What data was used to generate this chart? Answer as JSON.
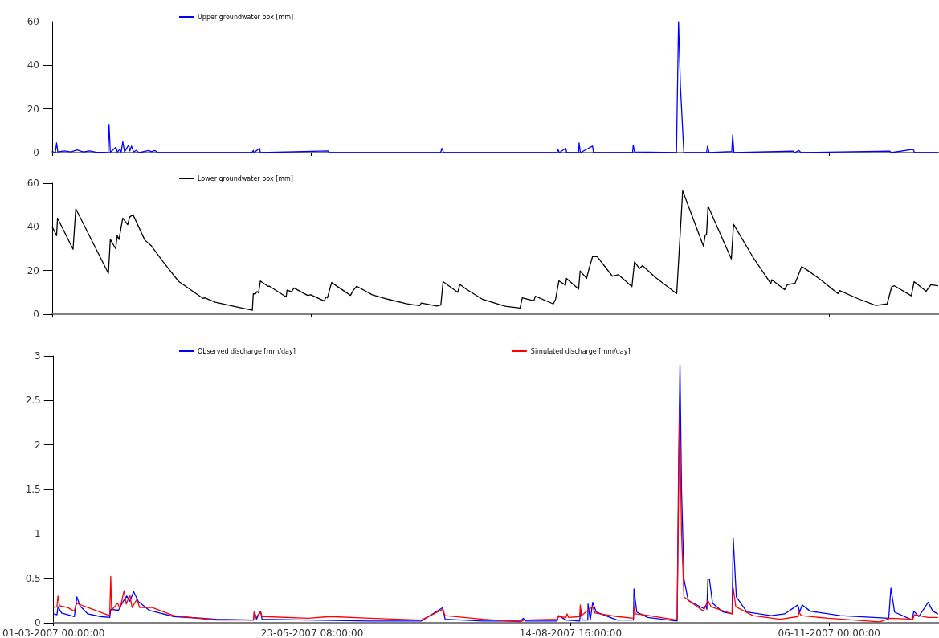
{
  "chart_data": [
    {
      "type": "line",
      "xlim": [
        "2007-03-01T00:00",
        "2007-12-11T10:00"
      ],
      "xticks": [
        {
          "value": "2007-03-01T00:00",
          "label": null
        },
        {
          "value": "2007-05-23T08:00",
          "label": null
        },
        {
          "value": "2007-08-14T16:00",
          "label": null
        },
        {
          "value": "2007-11-06T00:00",
          "label": null
        }
      ],
      "ylim": [
        0,
        60
      ],
      "yticks": [
        0,
        20,
        40,
        60
      ],
      "tick_labels": "y",
      "legend": "top",
      "marker": "none",
      "line_style": "solid",
      "series": [
        {
          "name": "Upper groundwater box [mm]",
          "color": "#0000ff",
          "x": [
            "2007-03-01T00:00",
            "2007-03-02T00:00",
            "2007-03-02T10:00",
            "2007-03-02T19:00",
            "2007-03-05T00:00",
            "2007-03-07T00:00",
            "2007-03-09T00:00",
            "2007-03-11T00:00",
            "2007-03-13T00:00",
            "2007-03-15T00:00",
            "2007-03-19T00:00",
            "2007-03-19T07:00",
            "2007-03-19T17:00",
            "2007-03-21T12:00",
            "2007-03-22T00:00",
            "2007-03-22T17:00",
            "2007-03-23T05:00",
            "2007-03-23T17:00",
            "2007-03-24T07:00",
            "2007-03-25T14:00",
            "2007-03-26T00:00",
            "2007-03-26T12:00",
            "2007-03-27T05:00",
            "2007-03-28T00:00",
            "2007-03-29T00:00",
            "2007-04-01T00:00",
            "2007-04-02T00:00",
            "2007-04-03T00:00",
            "2007-04-04T00:00",
            "2007-05-04T07:00",
            "2007-05-04T17:00",
            "2007-05-05T00:00",
            "2007-05-06T17:00",
            "2007-05-07T00:00",
            "2007-05-28T19:00",
            "2007-05-29T05:00",
            "2007-07-04T00:00",
            "2007-07-04T10:00",
            "2007-07-05T00:00",
            "2007-08-10T12:00",
            "2007-08-10T19:00",
            "2007-08-11T05:00",
            "2007-08-13T07:00",
            "2007-08-13T14:00",
            "2007-08-17T10:00",
            "2007-08-17T14:00",
            "2007-08-18T00:00",
            "2007-08-21T22:00",
            "2007-08-22T05:00",
            "2007-09-03T19:00",
            "2007-09-04T00:00",
            "2007-09-04T10:00",
            "2007-09-17T22:00",
            "2007-09-18T14:00",
            "2007-09-19T05:00",
            "2007-09-20T07:00",
            "2007-09-27T14:00",
            "2007-09-27T22:00",
            "2007-09-28T10:00",
            "2007-10-05T17:00",
            "2007-10-06T00:00",
            "2007-10-06T10:00",
            "2007-10-25T10:00",
            "2007-10-26T00:00",
            "2007-10-27T07:00",
            "2007-10-28T00:00",
            "2007-11-25T14:00",
            "2007-11-26T00:00",
            "2007-12-03T02:00",
            "2007-12-03T14:00",
            "2007-12-11T00:00"
          ],
          "values": [
            0.5,
            0,
            4.5,
            0.3,
            0.8,
            0.3,
            1.2,
            0.3,
            0.8,
            0.2,
            0,
            13,
            0.2,
            2.5,
            0.2,
            1.5,
            0.3,
            5,
            0.3,
            3.5,
            0.8,
            3,
            0.3,
            1,
            0,
            1,
            0.4,
            1,
            0,
            0,
            1,
            0,
            2,
            0,
            0.8,
            0,
            0,
            2,
            0,
            0,
            1.5,
            0,
            2,
            0,
            0,
            4.5,
            0,
            3,
            0,
            0,
            3.5,
            0.3,
            0,
            60,
            30,
            0,
            0,
            3,
            0,
            0.5,
            8,
            0,
            0.7,
            0,
            1,
            0,
            0.7,
            0,
            1.5,
            0,
            0
          ]
        }
      ]
    },
    {
      "type": "line",
      "xlim": [
        "2007-03-01T00:00",
        "2007-12-11T10:00"
      ],
      "xticks": [
        {
          "value": "2007-03-01T00:00",
          "label": null
        },
        {
          "value": "2007-05-23T08:00",
          "label": null
        },
        {
          "value": "2007-08-14T16:00",
          "label": null
        },
        {
          "value": "2007-11-06T00:00",
          "label": null
        }
      ],
      "ylim": [
        0,
        60
      ],
      "yticks": [
        0,
        20,
        40,
        60
      ],
      "tick_labels": "y",
      "legend": "top",
      "marker": "none",
      "line_style": "solid",
      "series": [
        {
          "name": "Lower groundwater box [mm]",
          "color": "#000000",
          "x": [
            "2007-03-01T00:00",
            "2007-03-02T10:00",
            "2007-03-02T17:00",
            "2007-03-07T17:00",
            "2007-03-08T14:00",
            "2007-03-19T02:00",
            "2007-03-19T17:00",
            "2007-03-21T10:00",
            "2007-03-21T22:00",
            "2007-03-22T12:00",
            "2007-03-22T22:00",
            "2007-03-23T17:00",
            "2007-03-25T07:00",
            "2007-03-25T22:00",
            "2007-03-27T00:00",
            "2007-03-30T19:00",
            "2007-04-01T19:00",
            "2007-04-05T17:00",
            "2007-04-10T17:00",
            "2007-04-18T14:00",
            "2007-04-19T02:00",
            "2007-04-22T12:00",
            "2007-04-30T10:00",
            "2007-05-04T10:00",
            "2007-05-04T17:00",
            "2007-05-05T10:00",
            "2007-05-05T22:00",
            "2007-05-06T10:00",
            "2007-05-07T00:00",
            "2007-05-09T10:00",
            "2007-05-09T22:00",
            "2007-05-15T07:00",
            "2007-05-15T14:00",
            "2007-05-17T02:00",
            "2007-05-17T19:00",
            "2007-05-22T05:00",
            "2007-05-23T05:00",
            "2007-05-27T14:00",
            "2007-05-28T02:00",
            "2007-05-28T14:00",
            "2007-05-29T22:00",
            "2007-06-05T00:00",
            "2007-06-05T19:00",
            "2007-06-07T00:00",
            "2007-06-12T00:00",
            "2007-06-16T22:00",
            "2007-06-22T22:00",
            "2007-06-27T07:00",
            "2007-06-27T19:00",
            "2007-07-02T19:00",
            "2007-07-04T02:00",
            "2007-07-04T19:00",
            "2007-07-09T12:00",
            "2007-07-10T05:00",
            "2007-07-12T05:00",
            "2007-07-17T10:00",
            "2007-07-24T19:00",
            "2007-07-29T14:00",
            "2007-07-30T07:00",
            "2007-08-03T00:00",
            "2007-08-03T12:00",
            "2007-08-09T07:00",
            "2007-08-10T00:00",
            "2007-08-11T02:00",
            "2007-08-13T05:00",
            "2007-08-13T12:00",
            "2007-08-17T10:00",
            "2007-08-17T22:00",
            "2007-08-20T00:00",
            "2007-08-20T19:00",
            "2007-08-21T22:00",
            "2007-08-23T10:00",
            "2007-08-28T07:00",
            "2007-08-30T05:00",
            "2007-09-03T14:00",
            "2007-09-04T10:00",
            "2007-09-06T00:00",
            "2007-09-07T00:00",
            "2007-09-10T22:00",
            "2007-09-18T00:00",
            "2007-09-19T22:00",
            "2007-09-26T14:00",
            "2007-09-27T05:00",
            "2007-09-27T14:00",
            "2007-09-28T02:00",
            "2007-10-05T14:00",
            "2007-10-06T07:00",
            "2007-10-12T10:00",
            "2007-10-18T07:00",
            "2007-10-18T14:00",
            "2007-10-22T17:00",
            "2007-10-23T14:00",
            "2007-10-26T02:00",
            "2007-10-27T00:00",
            "2007-10-28T05:00",
            "2007-10-30T00:00",
            "2007-11-03T19:00",
            "2007-11-08T22:00",
            "2007-11-09T10:00",
            "2007-11-15T12:00",
            "2007-11-21T02:00",
            "2007-11-24T17:00",
            "2007-11-26T05:00",
            "2007-11-27T02:00",
            "2007-12-02T12:00",
            "2007-12-03T10:00",
            "2007-12-07T07:00",
            "2007-12-08T19:00",
            "2007-12-11T00:00"
          ],
          "values": [
            40,
            36,
            44,
            29.7,
            48.3,
            18.7,
            34.3,
            30,
            36,
            34.2,
            37.7,
            44,
            41,
            44.5,
            45.6,
            34,
            31.5,
            24,
            15,
            7.2,
            7.5,
            5.5,
            3,
            1.8,
            9.3,
            9.3,
            10.4,
            9.7,
            15.2,
            12.8,
            12.8,
            7.9,
            11,
            10.3,
            12,
            8.6,
            8.9,
            6,
            7.9,
            7.5,
            14.5,
            8.6,
            10.7,
            12.8,
            8.9,
            6.9,
            4.8,
            3.9,
            5.1,
            3.7,
            4.2,
            14.9,
            10,
            13.6,
            11.5,
            6.9,
            3.6,
            2.8,
            7.5,
            6.1,
            8.2,
            4.7,
            6.8,
            15.3,
            13.3,
            16.4,
            11.5,
            19.8,
            16.4,
            20.9,
            26.4,
            26.4,
            17.4,
            18.1,
            12.6,
            24,
            20.9,
            22.3,
            17.1,
            9.4,
            56.5,
            31.2,
            36.4,
            36.4,
            49.5,
            25.3,
            41.2,
            26.4,
            14,
            15.8,
            11.2,
            13.5,
            14.2,
            17.4,
            21.8,
            20.2,
            15.3,
            9.4,
            10.8,
            7,
            4,
            4.7,
            12.6,
            13,
            8.4,
            14.9,
            10.5,
            13.5,
            13
          ]
        }
      ]
    },
    {
      "type": "line",
      "xlim": [
        "2007-03-01T00:00",
        "2007-12-11T10:00"
      ],
      "xticks": [
        {
          "value": "2007-03-01T00:00",
          "label": "01-03-2007 00:00:00"
        },
        {
          "value": "2007-05-23T08:00",
          "label": "23-05-2007 08:00:00"
        },
        {
          "value": "2007-08-14T16:00",
          "label": "14-08-2007 16:00:00"
        },
        {
          "value": "2007-11-06T00:00",
          "label": "06-11-2007 00:00:00"
        }
      ],
      "ylim": [
        0,
        3
      ],
      "yticks": [
        0,
        0.5,
        1,
        1.5,
        2,
        2.5,
        3
      ],
      "legend": "top",
      "marker": "none",
      "line_style": "solid",
      "series": [
        {
          "name": "Observed discharge [mm/day]",
          "color": "#0000ff",
          "x": [
            "2007-03-01T00:00",
            "2007-03-02T02:00",
            "2007-03-02T10:00",
            "2007-03-03T14:00",
            "2007-03-07T17:00",
            "2007-03-08T12:00",
            "2007-03-09T12:00",
            "2007-03-12T00:00",
            "2007-03-16T00:00",
            "2007-03-19T02:00",
            "2007-03-19T10:00",
            "2007-03-21T22:00",
            "2007-03-23T10:00",
            "2007-03-24T14:00",
            "2007-03-25T14:00",
            "2007-03-26T19:00",
            "2007-03-28T07:00",
            "2007-03-31T19:00",
            "2007-04-08T17:00",
            "2007-04-22T12:00",
            "2007-05-04T10:00",
            "2007-05-04T17:00",
            "2007-05-05T10:00",
            "2007-05-06T17:00",
            "2007-05-07T05:00",
            "2007-05-22T05:00",
            "2007-06-11T00:00",
            "2007-06-27T14:00",
            "2007-07-04T10:00",
            "2007-07-05T05:00",
            "2007-07-17T10:00",
            "2007-07-29T14:00",
            "2007-07-30T10:00",
            "2007-07-31T02:00",
            "2007-08-10T07:00",
            "2007-08-10T19:00",
            "2007-08-13T05:00",
            "2007-08-17T14:00",
            "2007-08-17T22:00",
            "2007-08-18T10:00",
            "2007-08-20T05:00",
            "2007-08-20T07:00",
            "2007-08-21T00:00",
            "2007-08-21T19:00",
            "2007-08-22T22:00",
            "2007-08-29T17:00",
            "2007-09-03T22:00",
            "2007-09-04T02:00",
            "2007-09-05T00:00",
            "2007-09-08T12:00",
            "2007-09-18T00:00",
            "2007-09-18T12:00",
            "2007-09-18T22:00",
            "2007-09-19T10:00",
            "2007-09-20T05:00",
            "2007-09-21T14:00",
            "2007-09-26T12:00",
            "2007-09-27T05:00",
            "2007-09-27T14:00",
            "2007-09-27T22:00",
            "2007-09-28T10:00",
            "2007-09-29T10:00",
            "2007-10-02T19:00",
            "2007-10-05T17:00",
            "2007-10-06T02:00",
            "2007-10-07T02:00",
            "2007-10-10T12:00",
            "2007-10-18T07:00",
            "2007-10-22T17:00",
            "2007-10-26T22:00",
            "2007-10-27T12:00",
            "2007-10-28T07:00",
            "2007-10-30T22:00",
            "2007-11-09T14:00",
            "2007-11-25T05:00",
            "2007-11-25T22:00",
            "2007-11-27T02:00",
            "2007-12-02T19:00",
            "2007-12-03T07:00",
            "2007-12-04T22:00",
            "2007-12-07T22:00",
            "2007-12-09T10:00",
            "2007-12-11T00:00"
          ],
          "values": [
            0.1,
            0.09,
            0.18,
            0.11,
            0.07,
            0.29,
            0.19,
            0.1,
            0.07,
            0.06,
            0.15,
            0.14,
            0.24,
            0.3,
            0.24,
            0.35,
            0.24,
            0.14,
            0.07,
            0.04,
            0.03,
            0.13,
            0.04,
            0.13,
            0.04,
            0.03,
            0.02,
            0.02,
            0.17,
            0.04,
            0.02,
            0.02,
            0.05,
            0.02,
            0.02,
            0.08,
            0.03,
            0.02,
            0.15,
            0.03,
            0.03,
            0.21,
            0.03,
            0.23,
            0.12,
            0.03,
            0.03,
            0.38,
            0.12,
            0.06,
            0.02,
            1.85,
            2.9,
            1.5,
            0.49,
            0.25,
            0.16,
            0.19,
            0.15,
            0.49,
            0.49,
            0.22,
            0.12,
            0.1,
            0.95,
            0.29,
            0.12,
            0.08,
            0.1,
            0.2,
            0.12,
            0.2,
            0.13,
            0.08,
            0.05,
            0.39,
            0.12,
            0.03,
            0.13,
            0.07,
            0.23,
            0.13,
            0.1
          ]
        },
        {
          "name": "Simulated discharge [mm/day]",
          "color": "#ff0000",
          "x": [
            "2007-03-01T00:00",
            "2007-03-02T02:00",
            "2007-03-02T10:00",
            "2007-03-02T22:00",
            "2007-03-05T14:00",
            "2007-03-07T14:00",
            "2007-03-08T12:00",
            "2007-03-10T12:00",
            "2007-03-19T02:00",
            "2007-03-19T10:00",
            "2007-03-19T17:00",
            "2007-03-21T14:00",
            "2007-03-22T10:00",
            "2007-03-23T17:00",
            "2007-03-24T10:00",
            "2007-03-25T14:00",
            "2007-03-26T07:00",
            "2007-03-27T19:00",
            "2007-03-28T19:00",
            "2007-04-01T19:00",
            "2007-04-08T17:00",
            "2007-04-22T12:00",
            "2007-05-04T10:00",
            "2007-05-04T17:00",
            "2007-05-05T05:00",
            "2007-05-06T17:00",
            "2007-05-07T05:00",
            "2007-05-22T05:00",
            "2007-05-29T02:00",
            "2007-06-11T00:00",
            "2007-06-27T14:00",
            "2007-07-04T10:00",
            "2007-07-05T05:00",
            "2007-07-17T10:00",
            "2007-07-29T14:00",
            "2007-07-30T14:00",
            "2007-08-10T07:00",
            "2007-08-10T19:00",
            "2007-08-13T05:00",
            "2007-08-13T12:00",
            "2007-08-14T00:00",
            "2007-08-17T14:00",
            "2007-08-17T19:00",
            "2007-08-18T02:00",
            "2007-08-21T19:00",
            "2007-08-22T12:00",
            "2007-08-29T17:00",
            "2007-09-03T22:00",
            "2007-09-04T02:00",
            "2007-09-04T14:00",
            "2007-09-07T05:00",
            "2007-09-18T00:00",
            "2007-09-18T19:00",
            "2007-09-19T10:00",
            "2007-09-20T05:00",
            "2007-09-26T12:00",
            "2007-09-27T22:00",
            "2007-09-28T22:00",
            "2007-10-05T17:00",
            "2007-10-06T02:00",
            "2007-10-06T22:00",
            "2007-10-12T10:00",
            "2007-10-21T05:00",
            "2007-10-27T00:00",
            "2007-10-27T07:00",
            "2007-10-28T00:00",
            "2007-11-05T17:00",
            "2007-11-22T07:00",
            "2007-11-25T17:00",
            "2007-12-03T00:00",
            "2007-12-03T12:00",
            "2007-12-07T22:00",
            "2007-12-11T00:00"
          ],
          "values": [
            0.17,
            0.18,
            0.3,
            0.19,
            0.17,
            0.13,
            0.22,
            0.19,
            0.08,
            0.52,
            0.14,
            0.22,
            0.16,
            0.36,
            0.21,
            0.31,
            0.17,
            0.26,
            0.17,
            0.17,
            0.08,
            0.03,
            0.03,
            0.13,
            0.06,
            0.12,
            0.07,
            0.05,
            0.07,
            0.05,
            0.03,
            0.15,
            0.08,
            0.04,
            0.01,
            0.03,
            0.04,
            0.07,
            0.06,
            0.1,
            0.06,
            0.07,
            0.2,
            0.08,
            0.18,
            0.11,
            0.07,
            0.05,
            0.18,
            0.1,
            0.09,
            0.03,
            2.39,
            1.0,
            0.29,
            0.13,
            0.25,
            0.18,
            0.1,
            0.39,
            0.18,
            0.08,
            0.04,
            0.07,
            0.12,
            0.08,
            0.05,
            0.01,
            0.05,
            0.04,
            0.09,
            0.06,
            0.06
          ]
        }
      ]
    }
  ]
}
